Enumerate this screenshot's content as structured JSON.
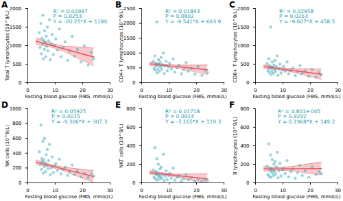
{
  "chart_data": [
    {
      "type": "scatter",
      "panel": "A",
      "x_label": "Fasting blood glucose (FBG, mmol/L)",
      "y_label": "Total T lymphocytes (10^9/L)",
      "annotations": [
        "R² = 0.02997",
        "P = 0.0253",
        "Y = -20.25*X + 1180"
      ],
      "x": [
        4.2,
        4.5,
        4.8,
        5.0,
        5.1,
        5.3,
        5.5,
        5.6,
        5.8,
        6.0,
        6.1,
        6.3,
        6.5,
        6.7,
        6.9,
        7.1,
        7.3,
        7.6,
        7.9,
        8.2,
        8.5,
        8.9,
        9.3,
        9.8,
        10.2,
        10.8,
        11.5,
        12.1,
        12.9,
        13.6,
        14.5,
        15.3,
        16.2,
        17.0,
        18.1,
        19.4,
        20.6,
        22.0,
        23.1,
        24.0
      ],
      "values": [
        1350,
        950,
        1600,
        780,
        1200,
        1050,
        1820,
        640,
        1150,
        900,
        1400,
        1100,
        700,
        1250,
        980,
        1500,
        860,
        1130,
        1700,
        620,
        1050,
        1300,
        760,
        1000,
        1180,
        880,
        1450,
        700,
        950,
        1100,
        600,
        850,
        1250,
        720,
        900,
        560,
        1000,
        480,
        820,
        650
      ],
      "color": "#3aaabb",
      "xlim": [
        0,
        30
      ],
      "xticks": [
        0,
        10,
        20,
        30
      ],
      "ylim": [
        0,
        2000
      ],
      "yticks": [
        0,
        500,
        1000,
        1500,
        2000
      ],
      "fit": {
        "x": [
          3,
          8,
          13,
          18,
          24
        ],
        "values": [
          1119,
          1018,
          917,
          815,
          694
        ],
        "ci_lower": [
          1029,
          968,
          847,
          665,
          454
        ],
        "ci_upper": [
          1209,
          1068,
          987,
          965,
          934
        ],
        "color": "#e8505b"
      }
    },
    {
      "type": "scatter",
      "panel": "B",
      "x_label": "Fasting blood glucose (FBG, mmol/L)",
      "y_label": "CD4+ T lymphocytes (10^9/L)",
      "annotations": [
        "R² = 0.01843",
        "P = 0.0802",
        "Y = -9.541*X + 663.9"
      ],
      "x": [
        4.2,
        4.5,
        4.8,
        5.0,
        5.1,
        5.3,
        5.5,
        5.6,
        5.8,
        6.0,
        6.1,
        6.3,
        6.5,
        6.7,
        6.9,
        7.1,
        7.3,
        7.6,
        7.9,
        8.2,
        8.5,
        8.9,
        9.3,
        9.8,
        10.2,
        10.8,
        11.5,
        12.1,
        12.9,
        13.6,
        14.5,
        15.3,
        16.2,
        17.0,
        18.1,
        19.4,
        20.6,
        22.0,
        23.1,
        24.0
      ],
      "values": [
        720,
        480,
        900,
        420,
        650,
        560,
        2050,
        330,
        620,
        460,
        780,
        600,
        380,
        700,
        540,
        850,
        450,
        610,
        1000,
        310,
        560,
        720,
        400,
        530,
        650,
        470,
        800,
        360,
        500,
        590,
        300,
        440,
        680,
        390,
        480,
        290,
        540,
        250,
        420,
        340
      ],
      "color": "#3aaabb",
      "xlim": [
        0,
        30
      ],
      "xticks": [
        0,
        10,
        20,
        30
      ],
      "ylim": [
        0,
        2500
      ],
      "yticks": [
        0,
        500,
        1000,
        1500,
        2000,
        2500
      ],
      "fit": {
        "x": [
          3,
          8,
          13,
          18,
          24
        ],
        "values": [
          635,
          588,
          540,
          492,
          435
        ],
        "ci_lower": [
          575,
          553,
          490,
          392,
          275
        ],
        "ci_upper": [
          695,
          623,
          590,
          592,
          595
        ],
        "color": "#e8505b"
      }
    },
    {
      "type": "scatter",
      "panel": "C",
      "x_label": "Fasting blood glucose (FBG, mmol/L)",
      "y_label": "CD8+ T lymphocytes (10^9/L)",
      "annotations": [
        "R² = 0.02958",
        "P = 0.0263",
        "Y = -9.607*X + 458.5"
      ],
      "x": [
        4.2,
        4.5,
        4.8,
        5.0,
        5.1,
        5.3,
        5.5,
        5.6,
        5.8,
        6.0,
        6.1,
        6.3,
        6.5,
        6.7,
        6.9,
        7.1,
        7.3,
        7.6,
        7.9,
        8.2,
        8.5,
        8.9,
        9.3,
        9.8,
        10.2,
        10.8,
        11.5,
        12.1,
        12.9,
        13.6,
        14.5,
        15.3,
        16.2,
        17.0,
        18.1,
        19.4,
        20.6,
        22.0,
        23.1,
        24.0
      ],
      "values": [
        520,
        330,
        650,
        280,
        460,
        390,
        1500,
        220,
        420,
        310,
        560,
        410,
        250,
        480,
        360,
        600,
        300,
        430,
        720,
        200,
        370,
        500,
        260,
        350,
        440,
        310,
        560,
        240,
        330,
        400,
        190,
        300,
        460,
        250,
        310,
        170,
        360,
        150,
        270,
        210
      ],
      "color": "#3aaabb",
      "xlim": [
        0,
        30
      ],
      "xticks": [
        0,
        10,
        20,
        30
      ],
      "ylim": [
        0,
        2000
      ],
      "yticks": [
        0,
        500,
        1000,
        1500,
        2000
      ],
      "fit": {
        "x": [
          3,
          8,
          13,
          18,
          24
        ],
        "values": [
          430,
          382,
          334,
          286,
          228
        ],
        "ci_lower": [
          380,
          352,
          289,
          196,
          88
        ],
        "ci_upper": [
          480,
          412,
          379,
          376,
          368
        ],
        "color": "#e8505b"
      }
    },
    {
      "type": "scatter",
      "panel": "D",
      "x_label": "Fasting blood glucose (FBG, mmol/L)",
      "y_label": "NK cells (10^9/L)",
      "annotations": [
        "R² = 0.05925",
        "P = 0.0015",
        "Y = -9.306*X + 307.3"
      ],
      "x": [
        4.2,
        4.5,
        4.8,
        5.0,
        5.1,
        5.3,
        5.5,
        5.6,
        5.8,
        6.0,
        6.1,
        6.3,
        6.5,
        6.7,
        6.9,
        7.1,
        7.3,
        7.6,
        7.9,
        8.2,
        8.5,
        8.9,
        9.3,
        9.8,
        10.2,
        10.8,
        11.5,
        12.1,
        12.9,
        13.6,
        14.5,
        15.3,
        16.2,
        17.0,
        18.1,
        19.4,
        20.6,
        22.0,
        23.1,
        24.0
      ],
      "values": [
        420,
        250,
        780,
        180,
        330,
        290,
        560,
        130,
        310,
        220,
        600,
        270,
        150,
        380,
        240,
        450,
        190,
        300,
        520,
        110,
        200,
        350,
        140,
        230,
        260,
        170,
        320,
        120,
        180,
        210,
        100,
        150,
        240,
        110,
        160,
        80,
        130,
        70,
        120,
        90
      ],
      "color": "#3aaabb",
      "xlim": [
        0,
        30
      ],
      "xticks": [
        0,
        10,
        20,
        30
      ],
      "ylim": [
        0,
        1000
      ],
      "yticks": [
        0,
        200,
        400,
        600,
        800,
        1000
      ],
      "fit": {
        "x": [
          3,
          8,
          13,
          18,
          24
        ],
        "values": [
          279,
          233,
          186,
          140,
          84
        ],
        "ci_lower": [
          249,
          215,
          161,
          90,
          4
        ],
        "ci_upper": [
          309,
          251,
          211,
          190,
          164
        ],
        "color": "#e8505b"
      }
    },
    {
      "type": "scatter",
      "panel": "E",
      "x_label": "Fasting blood glucose (FBG, mmol/L)",
      "y_label": "NKT cells (10^9/L)",
      "annotations": [
        "R² = 0.01718",
        "P = 0.0914",
        "Y = -3.165*X + 119.3"
      ],
      "x": [
        4.2,
        4.5,
        4.8,
        5.0,
        5.1,
        5.3,
        5.5,
        5.6,
        5.8,
        6.0,
        6.1,
        6.3,
        6.5,
        6.7,
        6.9,
        7.1,
        7.3,
        7.6,
        7.9,
        8.2,
        8.5,
        8.9,
        9.3,
        9.8,
        10.2,
        10.8,
        11.5,
        12.1,
        12.9,
        13.6,
        14.5,
        15.3,
        16.2,
        17.0,
        18.1,
        19.4,
        20.6,
        22.0,
        23.1,
        24.0
      ],
      "values": [
        140,
        60,
        380,
        45,
        120,
        90,
        260,
        30,
        110,
        70,
        200,
        85,
        40,
        150,
        65,
        170,
        50,
        95,
        310,
        25,
        70,
        130,
        35,
        80,
        100,
        50,
        160,
        30,
        60,
        75,
        20,
        45,
        90,
        35,
        55,
        15,
        40,
        20,
        35,
        25
      ],
      "color": "#3aaabb",
      "xlim": [
        0,
        30
      ],
      "xticks": [
        0,
        10,
        20,
        30
      ],
      "ylim": [
        0,
        800
      ],
      "yticks": [
        0,
        200,
        400,
        600,
        800
      ],
      "fit": {
        "x": [
          3,
          8,
          13,
          18,
          24
        ],
        "values": [
          110,
          94,
          78,
          62,
          43
        ],
        "ci_lower": [
          90,
          82,
          61,
          27,
          -12
        ],
        "ci_upper": [
          130,
          106,
          95,
          97,
          98
        ],
        "color": "#e8505b"
      }
    },
    {
      "type": "scatter",
      "panel": "F",
      "x_label": "Fasting blood glucose (FBG, mmol/L)",
      "y_label": "B lymphocytes (10^9/L)",
      "annotations": [
        "R² = 4.801e-005",
        "P = 0.9292",
        "Y = 0.1968*X + 149.2"
      ],
      "x": [
        4.2,
        4.5,
        4.8,
        5.0,
        5.1,
        5.3,
        5.5,
        5.6,
        5.8,
        6.0,
        6.1,
        6.3,
        6.5,
        6.7,
        6.9,
        7.1,
        7.3,
        7.6,
        7.9,
        8.2,
        8.5,
        8.9,
        9.3,
        9.8,
        10.2,
        10.8,
        11.5,
        12.1,
        12.9,
        13.6,
        14.5,
        15.3,
        16.2,
        17.0,
        18.1,
        19.4,
        20.6,
        22.0,
        23.1,
        24.0
      ],
      "values": [
        180,
        90,
        420,
        70,
        160,
        130,
        300,
        60,
        150,
        110,
        250,
        140,
        80,
        200,
        120,
        230,
        95,
        170,
        330,
        55,
        130,
        210,
        75,
        140,
        160,
        100,
        240,
        65,
        120,
        150,
        50,
        110,
        190,
        80,
        130,
        60,
        170,
        90,
        120,
        100
      ],
      "color": "#3aaabb",
      "xlim": [
        0,
        30
      ],
      "xticks": [
        0,
        10,
        20,
        30
      ],
      "ylim": [
        0,
        800
      ],
      "yticks": [
        0,
        200,
        400,
        600,
        800
      ],
      "fit": {
        "x": [
          3,
          8,
          13,
          18,
          24
        ],
        "values": [
          150,
          151,
          152,
          153,
          154
        ],
        "ci_lower": [
          125,
          136,
          130,
          108,
          84
        ],
        "ci_upper": [
          175,
          166,
          174,
          198,
          224
        ],
        "color": "#e8505b"
      }
    }
  ]
}
